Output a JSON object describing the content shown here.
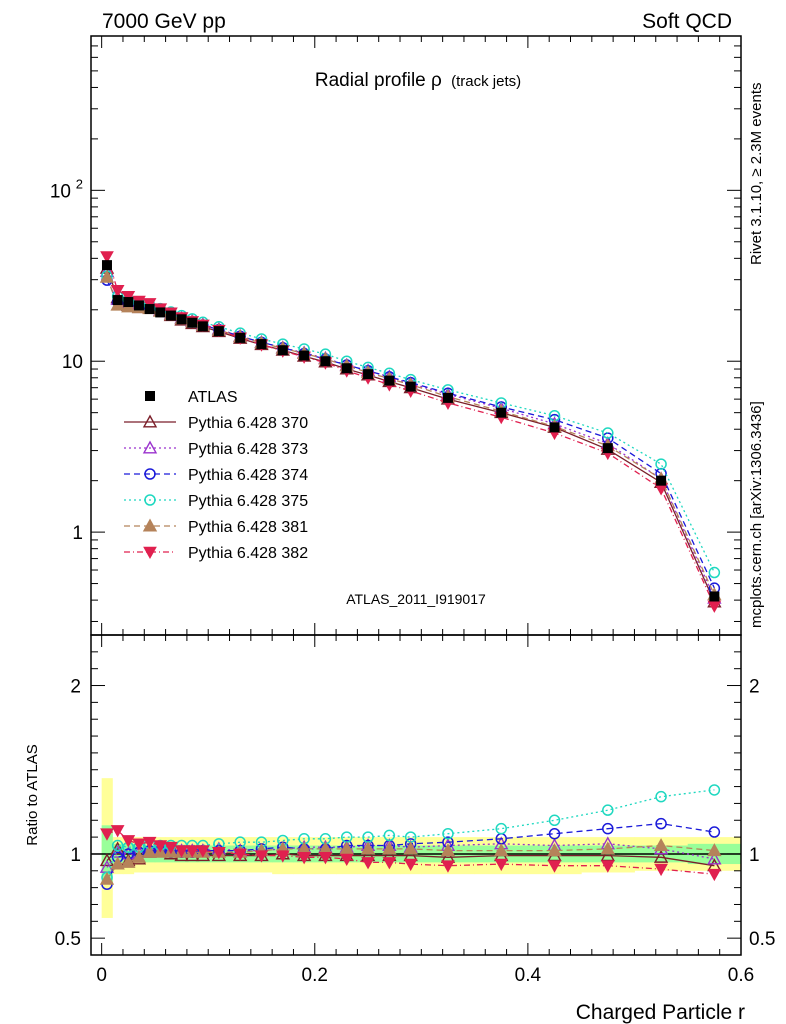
{
  "header": {
    "left": "7000 GeV pp",
    "right": "Soft QCD"
  },
  "side_labels": {
    "rivet": "Rivet 3.1.10, ≥ 2.3M events",
    "mcplots": "mcplots.cern.ch [arXiv:1306.3436]"
  },
  "chart_data": [
    {
      "type": "line",
      "title": "Radial profile ρ",
      "title_sub": "(track jets)",
      "analysis_tag": "ATLAS_2011_I919017",
      "ylabel": "",
      "xlim": [
        -0.01,
        0.6
      ],
      "ylim": [
        0.25,
        800
      ],
      "yscale": "log",
      "y_ticks": [
        {
          "value": 1,
          "label": "1"
        },
        {
          "value": 10,
          "label": "10"
        },
        {
          "value": 100,
          "label": "10",
          "sup": "2"
        }
      ],
      "legend_position": "mid-left",
      "x": [
        0.005,
        0.015,
        0.025,
        0.035,
        0.045,
        0.055,
        0.065,
        0.075,
        0.085,
        0.095,
        0.11,
        0.13,
        0.15,
        0.17,
        0.19,
        0.21,
        0.23,
        0.25,
        0.27,
        0.29,
        0.325,
        0.375,
        0.425,
        0.475,
        0.525,
        0.575
      ],
      "series": [
        {
          "name": "ATLAS",
          "color": "#000000",
          "marker": "square",
          "dash": "none",
          "values": [
            36.5,
            22.8,
            22.2,
            21.2,
            20.2,
            19.3,
            18.5,
            17.6,
            16.8,
            16.0,
            15.0,
            13.7,
            12.6,
            11.6,
            10.8,
            10.0,
            9.1,
            8.4,
            7.7,
            7.1,
            6.1,
            5.0,
            4.1,
            3.1,
            2.0,
            0.42
          ]
        },
        {
          "name": "Pythia 6.428 370",
          "color": "#7b1f2a",
          "marker": "tri-up-open",
          "dash": "none",
          "values": [
            35.0,
            23.5,
            21.2,
            20.6,
            20.4,
            19.7,
            18.5,
            17.4,
            16.6,
            15.9,
            14.9,
            13.6,
            12.5,
            11.6,
            10.7,
            9.9,
            9.0,
            8.3,
            7.6,
            7.0,
            6.0,
            5.0,
            4.1,
            3.05,
            1.95,
            0.39
          ]
        },
        {
          "name": "Pythia 6.428 373",
          "color": "#9a32cd",
          "marker": "tri-up-open",
          "dash": "2,3",
          "values": [
            33.5,
            23.0,
            22.2,
            21.5,
            20.8,
            19.9,
            18.9,
            17.9,
            17.2,
            16.4,
            15.4,
            14.0,
            12.9,
            12.0,
            11.2,
            10.4,
            9.5,
            8.8,
            8.1,
            7.4,
            6.4,
            5.3,
            4.3,
            3.3,
            2.05,
            0.41
          ]
        },
        {
          "name": "Pythia 6.428 374",
          "color": "#1a1ad9",
          "marker": "circle-open",
          "dash": "6,4",
          "values": [
            29.8,
            22.3,
            22.3,
            21.5,
            20.6,
            19.7,
            18.7,
            17.8,
            17.0,
            16.3,
            15.3,
            14.0,
            12.9,
            12.0,
            11.1,
            10.3,
            9.5,
            8.8,
            8.1,
            7.5,
            6.5,
            5.4,
            4.55,
            3.55,
            2.2,
            0.47
          ]
        },
        {
          "name": "Pythia 6.428 375",
          "color": "#1ed8c0",
          "marker": "circle-open",
          "dash": "2,3",
          "values": [
            31.5,
            24.0,
            23.0,
            22.0,
            21.3,
            20.3,
            19.4,
            18.5,
            17.7,
            16.9,
            15.9,
            14.6,
            13.5,
            12.6,
            11.8,
            11.0,
            10.0,
            9.2,
            8.5,
            7.8,
            6.8,
            5.7,
            4.8,
            3.8,
            2.5,
            0.58
          ]
        },
        {
          "name": "Pythia 6.428 381",
          "color": "#b5835a",
          "marker": "tri-up-filled",
          "dash": "6,4",
          "values": [
            31.0,
            21.3,
            20.8,
            20.6,
            20.3,
            19.6,
            18.7,
            17.7,
            17.0,
            16.2,
            15.2,
            13.9,
            12.8,
            11.9,
            11.1,
            10.3,
            9.4,
            8.6,
            7.9,
            7.3,
            6.2,
            5.1,
            4.15,
            3.2,
            2.05,
            0.43
          ]
        },
        {
          "name": "Pythia 6.428 382",
          "color": "#e0204f",
          "marker": "tri-down-filled",
          "dash": "6,3,1,3",
          "values": [
            41.0,
            26.0,
            24.0,
            22.5,
            21.8,
            20.3,
            19.2,
            18.0,
            17.1,
            16.3,
            15.2,
            13.7,
            12.5,
            11.5,
            10.6,
            9.8,
            8.8,
            8.0,
            7.3,
            6.7,
            5.7,
            4.7,
            3.8,
            2.9,
            1.8,
            0.37
          ]
        }
      ]
    },
    {
      "type": "line",
      "ylabel": "Ratio to ATLAS",
      "xlabel": "Charged Particle r",
      "xlim": [
        -0.01,
        0.6
      ],
      "ylim": [
        0.4,
        2.3
      ],
      "y_ticks": [
        {
          "value": 0.5,
          "label": "0.5"
        },
        {
          "value": 1,
          "label": "1"
        },
        {
          "value": 2,
          "label": "2"
        }
      ],
      "x_ticks": [
        {
          "value": 0,
          "label": "0"
        },
        {
          "value": 0.2,
          "label": "0.2"
        },
        {
          "value": 0.4,
          "label": "0.4"
        },
        {
          "value": 0.6,
          "label": "0.6"
        }
      ],
      "x": [
        0.005,
        0.015,
        0.025,
        0.035,
        0.045,
        0.055,
        0.065,
        0.075,
        0.085,
        0.095,
        0.11,
        0.13,
        0.15,
        0.17,
        0.19,
        0.21,
        0.23,
        0.25,
        0.27,
        0.29,
        0.325,
        0.375,
        0.425,
        0.475,
        0.525,
        0.575
      ],
      "bin_edges": [
        0,
        0.01,
        0.02,
        0.03,
        0.04,
        0.05,
        0.06,
        0.07,
        0.08,
        0.09,
        0.1,
        0.12,
        0.14,
        0.16,
        0.18,
        0.2,
        0.22,
        0.24,
        0.26,
        0.28,
        0.3,
        0.35,
        0.4,
        0.45,
        0.5,
        0.55,
        0.6
      ],
      "band_total": [
        [
          0.62,
          1.45
        ],
        [
          0.88,
          1.1
        ],
        [
          0.88,
          1.1
        ],
        [
          0.89,
          1.1
        ],
        [
          0.89,
          1.1
        ],
        [
          0.89,
          1.1
        ],
        [
          0.89,
          1.1
        ],
        [
          0.89,
          1.1
        ],
        [
          0.89,
          1.1
        ],
        [
          0.89,
          1.1
        ],
        [
          0.89,
          1.1
        ],
        [
          0.89,
          1.1
        ],
        [
          0.89,
          1.1
        ],
        [
          0.88,
          1.1
        ],
        [
          0.88,
          1.1
        ],
        [
          0.88,
          1.1
        ],
        [
          0.88,
          1.1
        ],
        [
          0.88,
          1.1
        ],
        [
          0.88,
          1.1
        ],
        [
          0.88,
          1.1
        ],
        [
          0.88,
          1.1
        ],
        [
          0.88,
          1.1
        ],
        [
          0.88,
          1.1
        ],
        [
          0.89,
          1.1
        ],
        [
          0.9,
          1.1
        ],
        [
          0.9,
          1.1
        ]
      ],
      "band_stat": [
        [
          0.83,
          1.17
        ],
        [
          0.94,
          1.06
        ],
        [
          0.94,
          1.06
        ],
        [
          0.95,
          1.05
        ],
        [
          0.95,
          1.05
        ],
        [
          0.95,
          1.05
        ],
        [
          0.95,
          1.05
        ],
        [
          0.95,
          1.05
        ],
        [
          0.95,
          1.05
        ],
        [
          0.95,
          1.05
        ],
        [
          0.95,
          1.05
        ],
        [
          0.95,
          1.05
        ],
        [
          0.95,
          1.05
        ],
        [
          0.95,
          1.05
        ],
        [
          0.95,
          1.05
        ],
        [
          0.95,
          1.05
        ],
        [
          0.95,
          1.05
        ],
        [
          0.95,
          1.05
        ],
        [
          0.95,
          1.05
        ],
        [
          0.95,
          1.05
        ],
        [
          0.95,
          1.05
        ],
        [
          0.95,
          1.05
        ],
        [
          0.95,
          1.05
        ],
        [
          0.95,
          1.05
        ],
        [
          0.95,
          1.05
        ],
        [
          0.94,
          1.06
        ]
      ],
      "series": [
        {
          "name": "Pythia 6.428 370",
          "values": [
            0.96,
            1.03,
            0.96,
            0.97,
            1.01,
            1.02,
            1.0,
            0.99,
            0.99,
            0.99,
            0.99,
            0.99,
            0.99,
            1.0,
            0.99,
            0.99,
            0.99,
            0.99,
            0.99,
            0.99,
            0.98,
            0.99,
            0.99,
            0.99,
            0.98,
            0.93
          ]
        },
        {
          "name": "Pythia 6.428 373",
          "values": [
            0.92,
            1.01,
            1.0,
            1.01,
            1.03,
            1.03,
            1.02,
            1.02,
            1.02,
            1.02,
            1.03,
            1.02,
            1.02,
            1.03,
            1.04,
            1.04,
            1.04,
            1.05,
            1.05,
            1.04,
            1.05,
            1.06,
            1.05,
            1.06,
            1.03,
            0.97
          ]
        },
        {
          "name": "Pythia 6.428 374",
          "values": [
            0.82,
            0.98,
            1.0,
            1.01,
            1.02,
            1.02,
            1.01,
            1.01,
            1.01,
            1.02,
            1.02,
            1.02,
            1.03,
            1.04,
            1.03,
            1.03,
            1.05,
            1.05,
            1.05,
            1.06,
            1.07,
            1.09,
            1.12,
            1.15,
            1.18,
            1.13
          ]
        },
        {
          "name": "Pythia 6.428 375",
          "values": [
            0.86,
            1.05,
            1.04,
            1.04,
            1.06,
            1.05,
            1.05,
            1.05,
            1.05,
            1.05,
            1.06,
            1.07,
            1.07,
            1.08,
            1.09,
            1.09,
            1.1,
            1.1,
            1.11,
            1.1,
            1.12,
            1.15,
            1.2,
            1.26,
            1.34,
            1.38
          ]
        },
        {
          "name": "Pythia 6.428 381",
          "values": [
            0.85,
            0.94,
            0.95,
            0.98,
            1.01,
            1.01,
            1.01,
            1.01,
            1.01,
            1.01,
            1.01,
            1.01,
            1.02,
            1.03,
            1.03,
            1.03,
            1.03,
            1.03,
            1.03,
            1.03,
            1.02,
            1.02,
            1.02,
            1.03,
            1.05,
            1.02
          ]
        },
        {
          "name": "Pythia 6.428 382",
          "values": [
            1.12,
            1.14,
            1.08,
            1.06,
            1.07,
            1.05,
            1.04,
            1.02,
            1.02,
            1.02,
            1.01,
            1.0,
            0.99,
            0.99,
            0.98,
            0.98,
            0.97,
            0.95,
            0.95,
            0.94,
            0.93,
            0.94,
            0.93,
            0.93,
            0.91,
            0.88
          ]
        }
      ]
    }
  ]
}
